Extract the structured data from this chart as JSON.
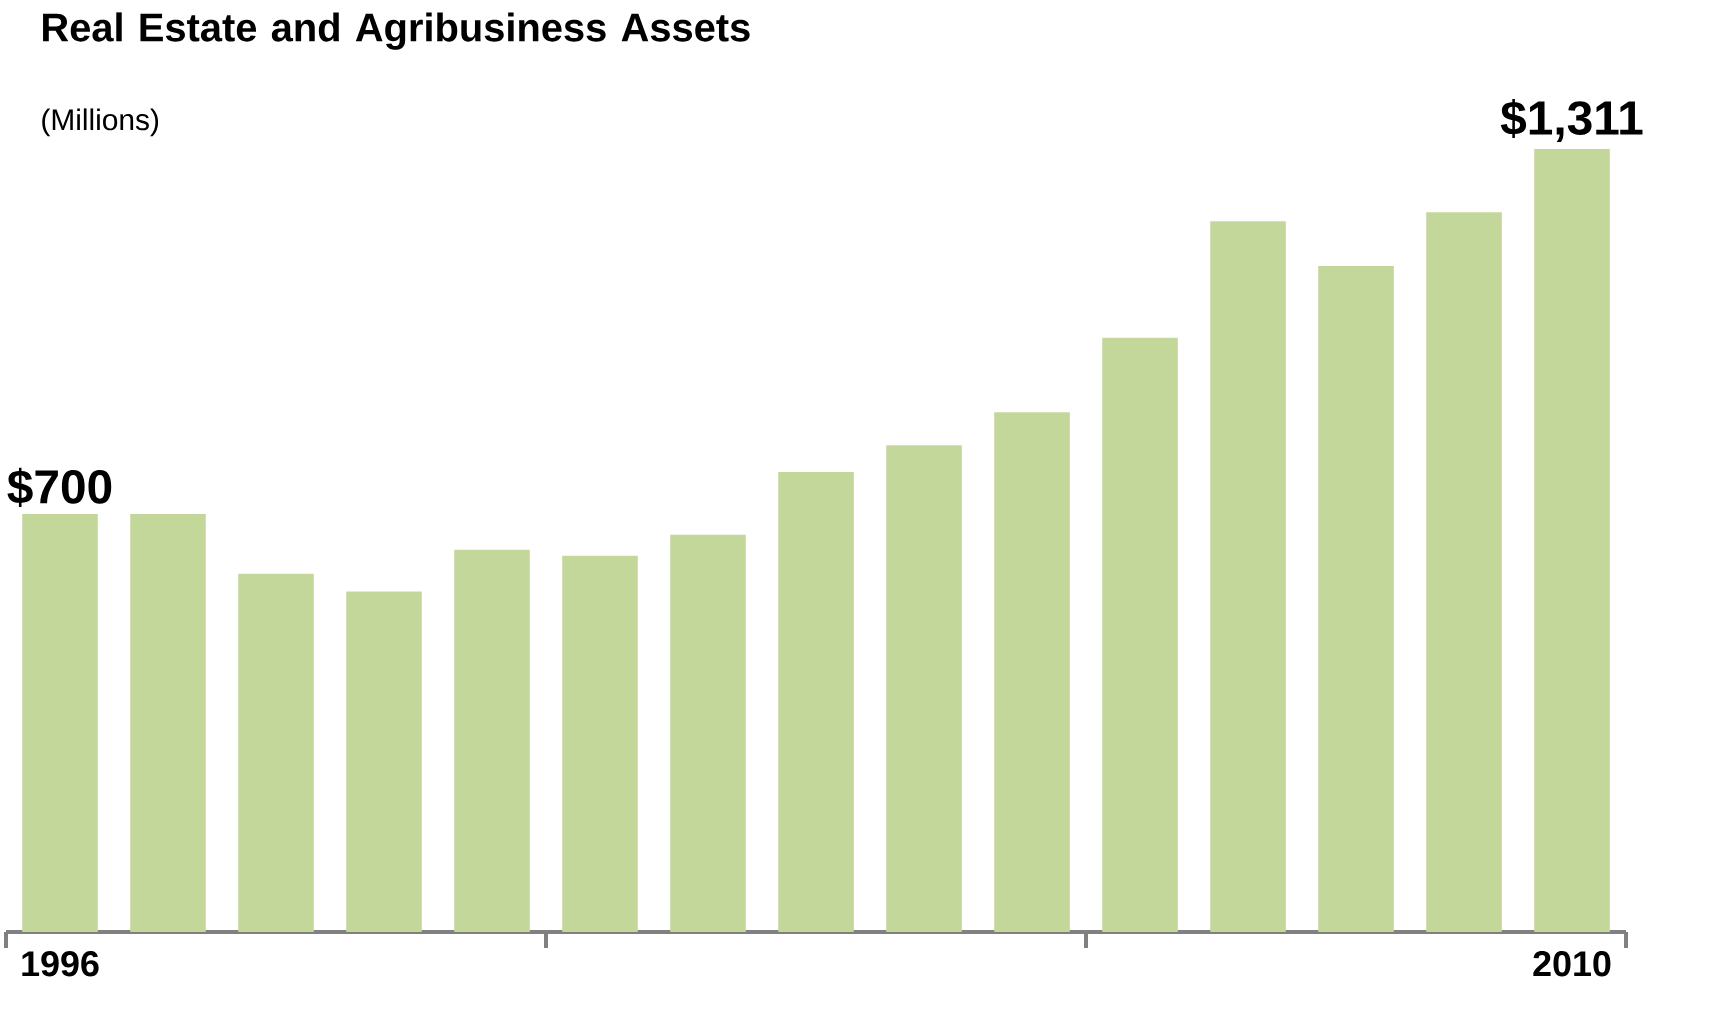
{
  "chart_data": {
    "type": "bar",
    "title": "Real Estate and Agribusiness Assets",
    "subtitle": "(Millions)",
    "categories": [
      "1996",
      null,
      null,
      null,
      null,
      null,
      null,
      null,
      null,
      null,
      null,
      null,
      null,
      null,
      "2010"
    ],
    "values": [
      700,
      700,
      600,
      570,
      640,
      630,
      665,
      770,
      815,
      870,
      995,
      1190,
      1115,
      1205,
      1311
    ],
    "value_labels": [
      "$700",
      null,
      null,
      null,
      null,
      null,
      null,
      null,
      null,
      null,
      null,
      null,
      null,
      null,
      "$1,311"
    ],
    "color": "#c4d79b",
    "tick_labels": "x"
  }
}
